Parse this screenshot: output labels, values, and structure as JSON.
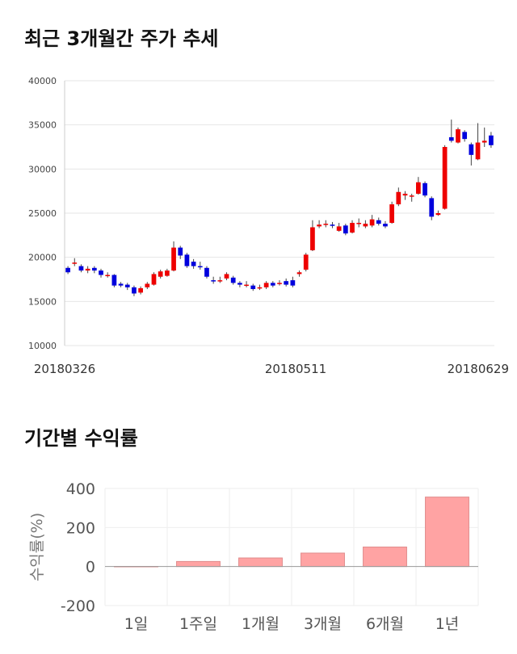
{
  "chart_data": [
    {
      "type": "candlestick",
      "title": "최근 3개월간 주가 추세",
      "ylim": [
        10000,
        40000
      ],
      "yticks": [
        10000,
        15000,
        20000,
        25000,
        30000,
        35000,
        40000
      ],
      "xtick_labels": [
        "20180326",
        "20180511",
        "20180629"
      ],
      "grid": "horizontal",
      "colors": {
        "up": "#ee0000",
        "down": "#0000dd",
        "wick": "#444444",
        "grid": "#e6e6e6",
        "axis": "#cccccc"
      },
      "candles": [
        [
          18800,
          18300,
          19000,
          18100
        ],
        [
          19400,
          19400,
          19900,
          19000
        ],
        [
          19000,
          18500,
          19200,
          18300
        ],
        [
          18500,
          18700,
          19000,
          18200
        ],
        [
          18800,
          18500,
          19000,
          18200
        ],
        [
          18500,
          18000,
          18700,
          17700
        ],
        [
          17900,
          18000,
          18300,
          17700
        ],
        [
          18000,
          16800,
          18100,
          16600
        ],
        [
          17000,
          16800,
          17200,
          16600
        ],
        [
          16900,
          16600,
          17100,
          16300
        ],
        [
          16600,
          15900,
          16800,
          15600
        ],
        [
          16000,
          16500,
          16700,
          15800
        ],
        [
          16600,
          17000,
          17200,
          16400
        ],
        [
          16900,
          18100,
          18300,
          16800
        ],
        [
          17800,
          18400,
          18600,
          17600
        ],
        [
          17900,
          18500,
          18700,
          17800
        ],
        [
          18500,
          21100,
          21800,
          18400
        ],
        [
          21100,
          20200,
          21300,
          19800
        ],
        [
          20300,
          19000,
          20500,
          18800
        ],
        [
          19500,
          19000,
          19800,
          18700
        ],
        [
          19000,
          18900,
          19500,
          18600
        ],
        [
          18800,
          17800,
          19000,
          17600
        ],
        [
          17400,
          17300,
          17800,
          17000
        ],
        [
          17300,
          17400,
          17800,
          17100
        ],
        [
          17600,
          18100,
          18300,
          17400
        ],
        [
          17700,
          17100,
          17900,
          16900
        ],
        [
          17100,
          16900,
          17300,
          16600
        ],
        [
          16800,
          16900,
          17300,
          16600
        ],
        [
          16800,
          16400,
          17000,
          16200
        ],
        [
          16500,
          16600,
          16900,
          16300
        ],
        [
          16600,
          17100,
          17300,
          16400
        ],
        [
          17100,
          16800,
          17300,
          16600
        ],
        [
          17000,
          17100,
          17400,
          16800
        ],
        [
          17300,
          16900,
          17600,
          16700
        ],
        [
          17400,
          16800,
          17800,
          16600
        ],
        [
          18100,
          18300,
          18500,
          17800
        ],
        [
          18600,
          20300,
          20500,
          18400
        ],
        [
          20800,
          23400,
          24200,
          20700
        ],
        [
          23500,
          23700,
          24200,
          23300
        ],
        [
          23700,
          23800,
          24200,
          23400
        ],
        [
          23700,
          23600,
          24000,
          23300
        ],
        [
          23000,
          23500,
          23900,
          22900
        ],
        [
          23600,
          22700,
          23800,
          22500
        ],
        [
          22800,
          23900,
          24200,
          22700
        ],
        [
          23900,
          23900,
          24400,
          23400
        ],
        [
          23500,
          23800,
          24200,
          23300
        ],
        [
          23600,
          24300,
          24800,
          23400
        ],
        [
          24200,
          23800,
          24500,
          23600
        ],
        [
          23800,
          23500,
          24100,
          23300
        ],
        [
          23900,
          26000,
          26300,
          23800
        ],
        [
          26000,
          27400,
          27900,
          25800
        ],
        [
          27000,
          27200,
          27500,
          26500
        ],
        [
          26900,
          27000,
          27200,
          26300
        ],
        [
          27200,
          28500,
          29100,
          27100
        ],
        [
          28400,
          27000,
          28600,
          26800
        ],
        [
          26700,
          24600,
          26900,
          24200
        ],
        [
          24800,
          25000,
          25300,
          24700
        ],
        [
          25500,
          32500,
          32700,
          25400
        ],
        [
          33600,
          33200,
          35600,
          33000
        ],
        [
          33000,
          34500,
          34700,
          32900
        ],
        [
          34200,
          33400,
          34400,
          33100
        ],
        [
          32800,
          31600,
          33000,
          30400
        ],
        [
          31100,
          33000,
          35200,
          31000
        ],
        [
          33000,
          33200,
          34700,
          32500
        ],
        [
          33800,
          32700,
          34200,
          32400
        ]
      ]
    },
    {
      "type": "bar",
      "title": "기간별 수익률",
      "categories": [
        "1일",
        "1주일",
        "1개월",
        "3개월",
        "6개월",
        "1년"
      ],
      "values": [
        0.5,
        26,
        44,
        69,
        100,
        356
      ],
      "ylabel": "수익률(%)",
      "ylim": [
        -200,
        400
      ],
      "yticks": [
        -200,
        0,
        200,
        400
      ],
      "grid": "both",
      "colors": {
        "bar": "#ffa3a3",
        "bar_edge": "#e08c8c",
        "zero_line": "#999999",
        "grid": "#eeeeee"
      }
    }
  ]
}
